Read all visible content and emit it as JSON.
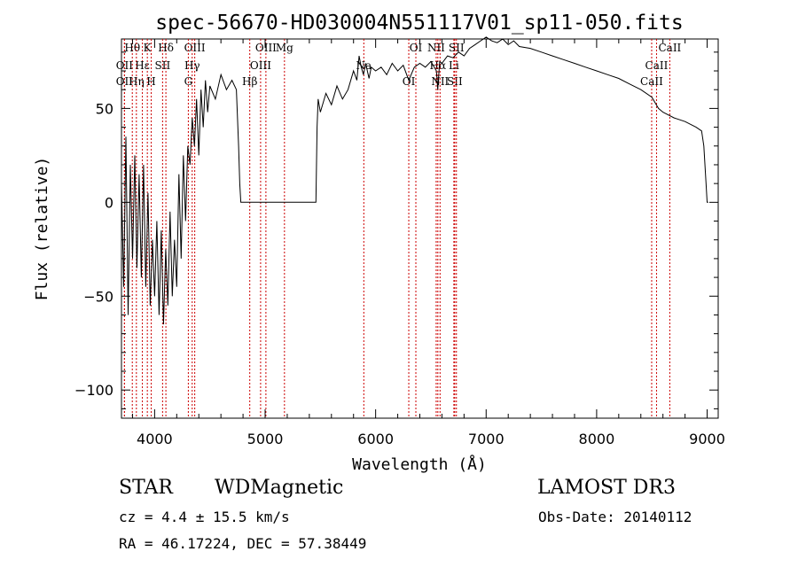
{
  "chart_data": {
    "type": "line",
    "title": "spec-56670-HD030004N551117V01_sp11-050.fits",
    "xlabel": "Wavelength (Å)",
    "ylabel": "Flux (relative)",
    "xlim": [
      3700,
      9100
    ],
    "ylim": [
      -115,
      87
    ],
    "xticks": [
      4000,
      5000,
      6000,
      7000,
      8000,
      9000
    ],
    "yticks": [
      -100,
      -50,
      0,
      50
    ],
    "grid": false,
    "legend": "none",
    "series": [
      {
        "x": [
          3700,
          3720,
          3740,
          3760,
          3780,
          3800,
          3820,
          3840,
          3860,
          3880,
          3900,
          3920,
          3940,
          3960,
          3980,
          4000,
          4020,
          4040,
          4060,
          4080,
          4100,
          4120,
          4140,
          4160,
          4180,
          4200,
          4220,
          4240,
          4260,
          4280,
          4300,
          4320,
          4340,
          4360,
          4380,
          4400,
          4420,
          4440,
          4460,
          4480,
          4500,
          4550,
          4600,
          4650,
          4700,
          4740,
          4760,
          4770,
          4780,
          4790,
          5000,
          5200,
          5400,
          5460,
          5470,
          5480,
          5500,
          5550,
          5600,
          5650,
          5700,
          5750,
          5800,
          5830,
          5850,
          5870,
          5890,
          5910,
          5940,
          5960,
          6000,
          6050,
          6100,
          6150,
          6200,
          6250,
          6300,
          6350,
          6400,
          6450,
          6500,
          6550,
          6562,
          6580,
          6600,
          6650,
          6700,
          6750,
          6800,
          6850,
          6900,
          6950,
          7000,
          7050,
          7100,
          7150,
          7200,
          7250,
          7300,
          7400,
          7500,
          7600,
          7700,
          7800,
          7900,
          8000,
          8100,
          8200,
          8300,
          8400,
          8500,
          8540,
          8560,
          8600,
          8700,
          8800,
          8900,
          8950,
          8970,
          8990,
          9000,
          9010
        ],
        "values": [
          10,
          -45,
          35,
          -60,
          20,
          -30,
          25,
          -35,
          15,
          -40,
          20,
          -45,
          5,
          -55,
          -20,
          -50,
          -10,
          -60,
          -15,
          -65,
          -25,
          -55,
          -5,
          -50,
          -20,
          -45,
          15,
          -30,
          25,
          -10,
          30,
          20,
          45,
          30,
          55,
          25,
          60,
          40,
          65,
          48,
          62,
          55,
          68,
          60,
          65,
          60,
          30,
          10,
          0,
          0,
          0,
          0,
          0,
          0,
          40,
          55,
          48,
          58,
          52,
          62,
          55,
          60,
          70,
          65,
          78,
          72,
          68,
          74,
          66,
          72,
          70,
          72,
          68,
          74,
          70,
          73,
          65,
          72,
          74,
          72,
          75,
          70,
          60,
          75,
          74,
          78,
          77,
          80,
          78,
          82,
          84,
          86,
          88,
          86,
          85,
          87,
          84,
          86,
          83,
          82,
          80,
          78,
          76,
          74,
          72,
          70,
          68,
          66,
          63,
          60,
          56,
          52,
          50,
          48,
          45,
          43,
          40,
          38,
          30,
          10,
          0,
          0
        ]
      }
    ],
    "line_markers": [
      {
        "label": "Hθ",
        "lambda": 3798
      },
      {
        "label": "OII",
        "lambda": 3727
      },
      {
        "label": "OII",
        "lambda": 3727
      },
      {
        "label": "K",
        "lambda": 3934
      },
      {
        "label": "Hε",
        "lambda": 3889
      },
      {
        "label": "Hη",
        "lambda": 3835
      },
      {
        "label": "Hδ",
        "lambda": 4102
      },
      {
        "label": "SII",
        "lambda": 4072
      },
      {
        "label": "H",
        "lambda": 3969
      },
      {
        "label": "OIII",
        "lambda": 4363
      },
      {
        "label": "Hγ",
        "lambda": 4340
      },
      {
        "label": "G",
        "lambda": 4305
      },
      {
        "label": "OIII",
        "lambda": 5007
      },
      {
        "label": "OIII",
        "lambda": 4959
      },
      {
        "label": "Hβ",
        "lambda": 4861
      },
      {
        "label": "Mg",
        "lambda": 5175
      },
      {
        "label": "Na",
        "lambda": 5893
      },
      {
        "label": "OI",
        "lambda": 6300
      },
      {
        "label": "OI",
        "lambda": 6364
      },
      {
        "label": "Hα",
        "lambda": 6563
      },
      {
        "label": "SII",
        "lambda": 6716
      },
      {
        "label": "NII",
        "lambda": 6548
      },
      {
        "label": "Li",
        "lambda": 6708
      },
      {
        "label": "NII",
        "lambda": 6583
      },
      {
        "label": "SII",
        "lambda": 6731
      },
      {
        "label": "CaII",
        "lambda": 8542
      },
      {
        "label": "CaII",
        "lambda": 8498
      },
      {
        "label": "CaII",
        "lambda": 8662
      }
    ],
    "colors": {
      "spectrum": "#000000",
      "markers": "#cc0000",
      "axes": "#000000"
    }
  },
  "info": {
    "object_class": "STAR",
    "subclass": "WDMagnetic",
    "survey": "LAMOST DR3",
    "cz": "cz = 4.4 ± 15.5 km/s",
    "obs_date": "Obs-Date: 20140112",
    "coords": "RA =  46.17224, DEC =  57.38449"
  }
}
